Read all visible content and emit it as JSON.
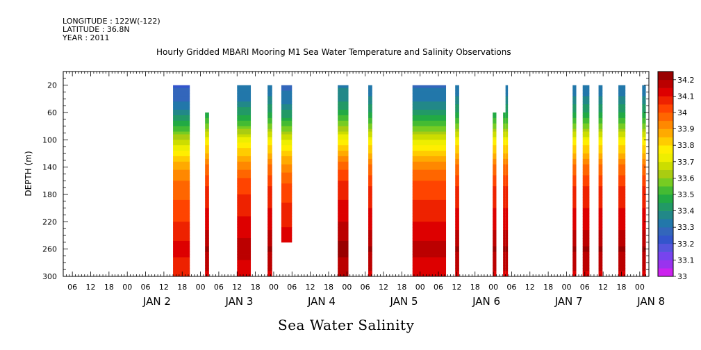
{
  "meta": {
    "longitude": "LONGITUDE : 122W(-122)",
    "latitude": "LATITUDE : 36.8N",
    "year": "YEAR : 2011"
  },
  "chart_data": {
    "type": "heatmap",
    "title": "Hourly Gridded MBARI Mooring M1 Sea Water Temperature and Salinity Observations",
    "bottom_title": "Sea Water Salinity",
    "ylabel": "DEPTH (m)",
    "xlabel": "",
    "x_unit": "hours since JAN 2 00:00 2011",
    "xlim": [
      -21,
      171
    ],
    "ylim": [
      300,
      0
    ],
    "y_ticks": [
      20,
      60,
      100,
      140,
      180,
      220,
      260,
      300
    ],
    "x_hour_tick_labels": [
      "06",
      "12",
      "18",
      "00",
      "06",
      "12",
      "18",
      "00",
      "06",
      "12",
      "18",
      "00",
      "06",
      "12",
      "18",
      "00",
      "06",
      "12",
      "18",
      "00",
      "06",
      "12",
      "18",
      "00",
      "06",
      "12",
      "18",
      "00",
      "06",
      "12",
      "18",
      "00"
    ],
    "x_day_labels": [
      {
        "label": "JAN  2",
        "x": 12
      },
      {
        "label": "JAN  3",
        "x": 39
      },
      {
        "label": "JAN  4",
        "x": 66
      },
      {
        "label": "JAN  5",
        "x": 93
      },
      {
        "label": "JAN  6",
        "x": 120
      },
      {
        "label": "JAN  7",
        "x": 147
      },
      {
        "label": "JAN  8",
        "x": 174
      }
    ],
    "colorbar": {
      "levels": [
        33.0,
        33.05,
        33.1,
        33.15,
        33.2,
        33.25,
        33.3,
        33.35,
        33.4,
        33.45,
        33.5,
        33.55,
        33.6,
        33.65,
        33.7,
        33.75,
        33.8,
        33.85,
        33.9,
        33.95,
        34.0,
        34.05,
        34.1,
        34.15,
        34.2,
        34.25
      ],
      "labels": [
        "33",
        "33.1",
        "33.2",
        "33.3",
        "33.4",
        "33.5",
        "33.6",
        "33.7",
        "33.8",
        "33.9",
        "34",
        "34.1",
        "34.2"
      ],
      "colors": [
        "#cc22ee",
        "#9933ee",
        "#7744ee",
        "#5555dd",
        "#3355cc",
        "#3366bb",
        "#2277aa",
        "#228888",
        "#229966",
        "#22aa44",
        "#44bb33",
        "#77cc22",
        "#aacc11",
        "#ccdd00",
        "#eeee00",
        "#ffee00",
        "#ffcc00",
        "#ffaa00",
        "#ff8800",
        "#ff6600",
        "#ff4400",
        "#ee2200",
        "#dd0000",
        "#bb0000",
        "#990000"
      ]
    },
    "profile": {
      "depths": [
        20,
        40,
        60,
        80,
        100,
        120,
        140,
        160,
        180,
        200,
        220,
        240,
        260,
        280,
        300
      ],
      "salinity": [
        33.32,
        33.36,
        33.45,
        33.58,
        33.74,
        33.86,
        33.96,
        34.03,
        34.07,
        34.1,
        34.13,
        34.16,
        34.21,
        34.16,
        34.14
      ]
    },
    "columns": [
      {
        "x0": 15,
        "x1": 20.5,
        "top": 20,
        "bottom": 300,
        "offset": -0.08
      },
      {
        "x0": 25.5,
        "x1": 26.8,
        "top": 60,
        "bottom": 300,
        "offset": 0.0
      },
      {
        "x0": 36,
        "x1": 40.5,
        "top": 20,
        "bottom": 300,
        "offset": -0.02
      },
      {
        "x0": 46,
        "x1": 47.5,
        "top": 20,
        "bottom": 300,
        "offset": 0.0
      },
      {
        "x0": 50.5,
        "x1": 54,
        "top": 20,
        "bottom": 250,
        "offset": -0.04
      },
      {
        "x0": 69,
        "x1": 72.5,
        "top": 20,
        "bottom": 300,
        "offset": 0.02
      },
      {
        "x0": 79,
        "x1": 80.3,
        "top": 20,
        "bottom": 300,
        "offset": 0.0
      },
      {
        "x0": 93.5,
        "x1": 104.5,
        "top": 20,
        "bottom": 300,
        "offset": -0.03
      },
      {
        "x0": 107.5,
        "x1": 108.8,
        "top": 20,
        "bottom": 300,
        "offset": 0.0
      },
      {
        "x0": 119.8,
        "x1": 121,
        "top": 60,
        "bottom": 300,
        "offset": 0.0
      },
      {
        "x0": 123.2,
        "x1": 124,
        "top": 60,
        "bottom": 300,
        "offset": 0.0
      },
      {
        "x0": 124,
        "x1": 124.8,
        "top": 20,
        "bottom": 300,
        "offset": 0.0
      },
      {
        "x0": 146,
        "x1": 147.2,
        "top": 20,
        "bottom": 300,
        "offset": 0.0
      },
      {
        "x0": 149.3,
        "x1": 151.5,
        "top": 20,
        "bottom": 300,
        "offset": 0.0
      },
      {
        "x0": 154.5,
        "x1": 155.8,
        "top": 20,
        "bottom": 300,
        "offset": 0.0
      },
      {
        "x0": 161,
        "x1": 163.3,
        "top": 20,
        "bottom": 300,
        "offset": 0.0
      },
      {
        "x0": 168.8,
        "x1": 170,
        "top": 20,
        "bottom": 300,
        "offset": 0.0
      }
    ]
  }
}
